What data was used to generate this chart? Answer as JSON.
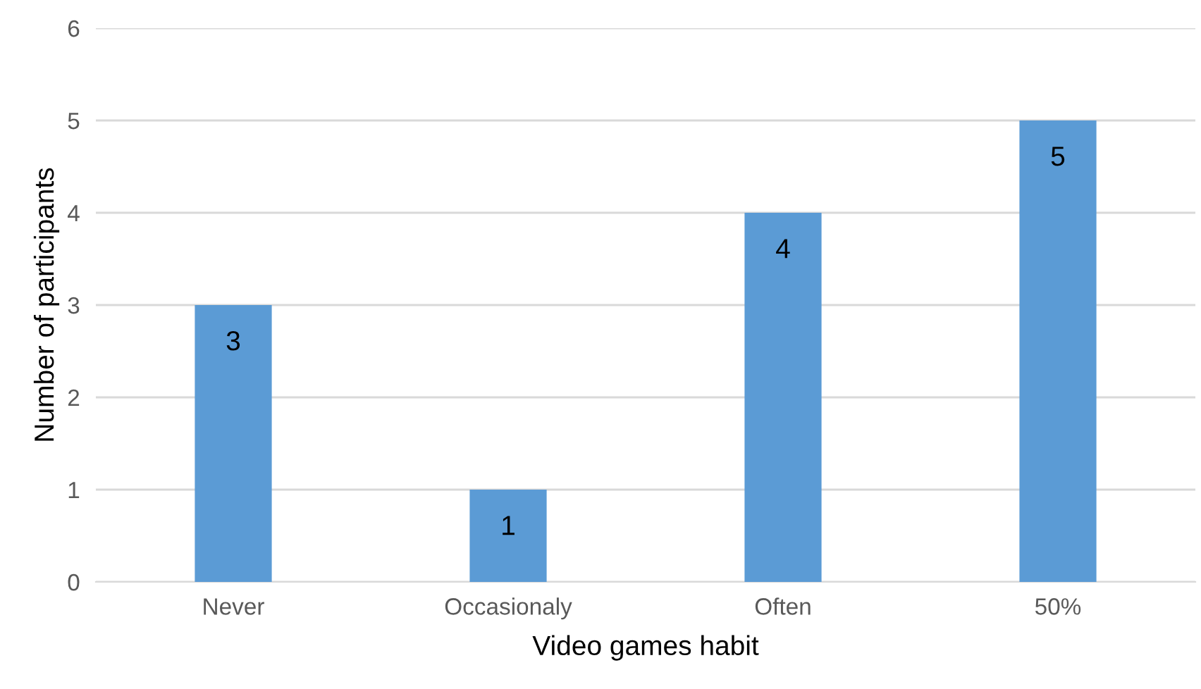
{
  "chart_data": {
    "type": "bar",
    "xlabel": "Video games habit",
    "ylabel": "Number of participants",
    "categories": [
      "Never",
      "Occasionaly",
      "Often",
      "50%"
    ],
    "values": [
      3,
      1,
      4,
      5
    ],
    "color": "#5b9bd5",
    "ylim": [
      0,
      6
    ],
    "yticks": [
      0,
      1,
      2,
      3,
      4,
      5,
      6
    ],
    "grid": "y",
    "data_labels": true,
    "legend": false
  }
}
